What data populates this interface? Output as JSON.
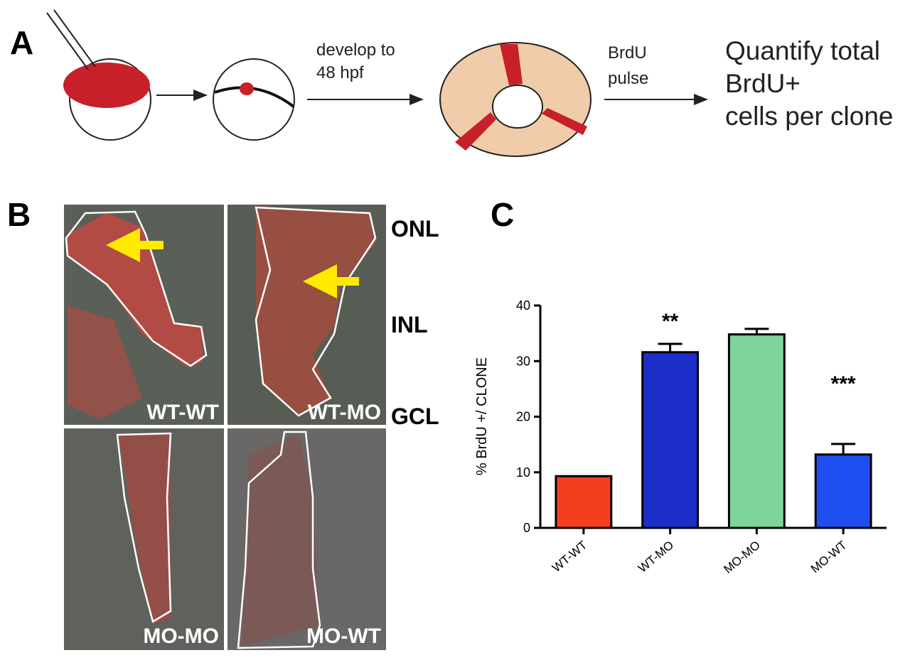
{
  "panel_a": {
    "label": "A",
    "step1": [
      "develop to",
      "48 hpf"
    ],
    "step2": [
      "BrdU",
      "pulse"
    ],
    "result": [
      "Quantify total",
      "BrdU+",
      "cells per clone"
    ]
  },
  "panel_b": {
    "label": "B",
    "images": [
      "WT-WT",
      "WT-MO",
      "MO-MO",
      "MO-WT"
    ],
    "layers": [
      "ONL",
      "INL",
      "GCL"
    ]
  },
  "panel_c": {
    "label": "C"
  },
  "chart_data": {
    "type": "bar",
    "ylabel": "% BrdU +/ CLONE",
    "categories": [
      "WT-WT",
      "WT-MO",
      "MO-MO",
      "MO-WT"
    ],
    "values": [
      9.3,
      31.6,
      34.8,
      13.2
    ],
    "errors": [
      null,
      1.5,
      1.0,
      1.9
    ],
    "colors": [
      "#f2401f",
      "#1c2fc8",
      "#7fd49a",
      "#1f4ef0"
    ],
    "ylim": [
      0,
      40
    ],
    "yticks": [
      0,
      10,
      20,
      30,
      40
    ],
    "annotations": [
      {
        "category": "WT-MO",
        "text": "**"
      },
      {
        "category": "MO-WT",
        "text": "***"
      }
    ]
  }
}
